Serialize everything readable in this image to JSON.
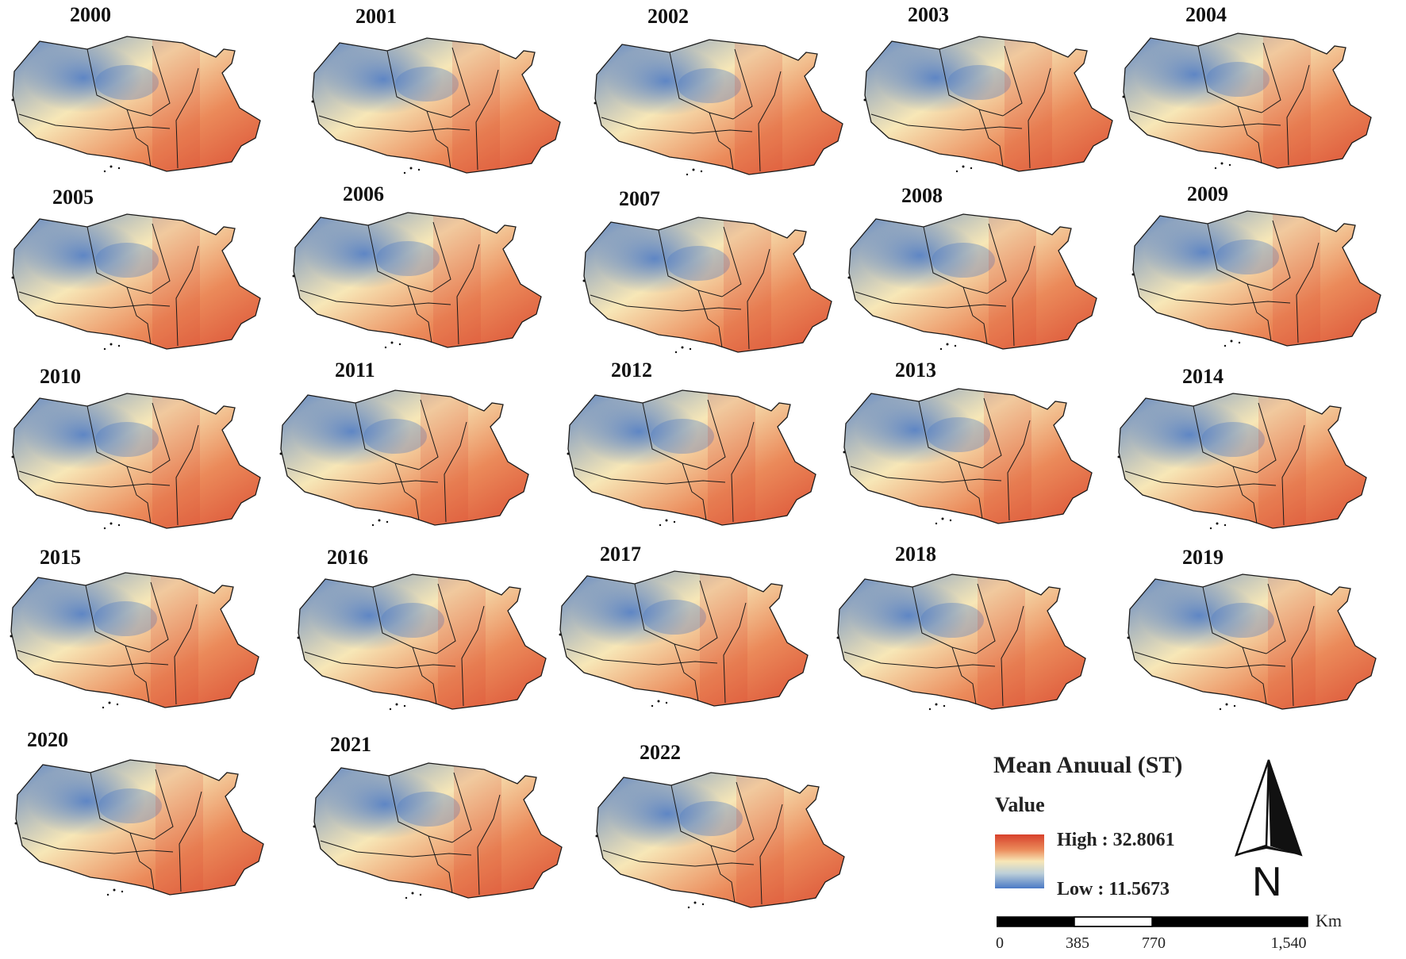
{
  "figure": {
    "years": [
      "2000",
      "2001",
      "2002",
      "2003",
      "2004",
      "2005",
      "2006",
      "2007",
      "2008",
      "2009",
      "2010",
      "2011",
      "2012",
      "2013",
      "2014",
      "2015",
      "2016",
      "2017",
      "2018",
      "2019",
      "2020",
      "2021",
      "2022"
    ]
  },
  "legend": {
    "title": "Mean Anuual (ST)",
    "subtitle": "Value",
    "high_label": "High : 32.8061",
    "low_label": "Low : 11.5673",
    "ramp_colors": [
      "#d7402b",
      "#eb8a5a",
      "#f7e7b7",
      "#bdd0d9",
      "#4a79c6"
    ]
  },
  "north_arrow": {
    "letter": "N"
  },
  "scale_bar": {
    "unit": "Km",
    "ticks": [
      "0",
      "385",
      "770",
      "1,540"
    ]
  },
  "colors": {
    "high": "#d7402b",
    "mid": "#f7e7b7",
    "low": "#4a79c6",
    "boundary": "#1a1a1a"
  }
}
